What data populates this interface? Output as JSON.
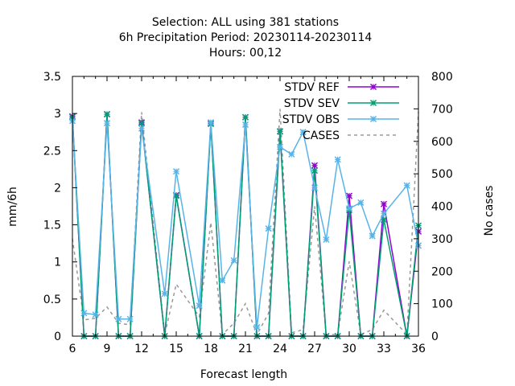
{
  "chart_data": {
    "type": "line",
    "title_lines": [
      "Selection: ALL using   381 stations",
      "6h Precipitation   Period: 20230114-20230114",
      "Hours:  00,12"
    ],
    "xlabel": "Forecast length",
    "ylabel": "mm/6h",
    "y2label": "No cases",
    "xlim": [
      6,
      36
    ],
    "ylim": [
      0,
      3.5
    ],
    "y2lim": [
      0,
      800
    ],
    "xticks": [
      6,
      9,
      12,
      15,
      18,
      21,
      24,
      27,
      30,
      33,
      36
    ],
    "yticks": [
      0,
      0.5,
      1,
      1.5,
      2,
      2.5,
      3,
      3.5
    ],
    "y2ticks": [
      0,
      100,
      200,
      300,
      400,
      500,
      600,
      700,
      800
    ],
    "legend_position": "top-right",
    "x": [
      6,
      7,
      8,
      9,
      10,
      11,
      12,
      14,
      15,
      17,
      18,
      19,
      20,
      21,
      22,
      23,
      24,
      25,
      26,
      27,
      28,
      29,
      30,
      31,
      32,
      33,
      35,
      36
    ],
    "series": [
      {
        "name": "STDV REF",
        "color": "#9400d3",
        "marker": "x",
        "axis": "y",
        "values": [
          2.96,
          0,
          0,
          2.99,
          0,
          0,
          2.88,
          0,
          1.9,
          0,
          2.87,
          0,
          0,
          2.95,
          0,
          0,
          2.76,
          0,
          0,
          2.3,
          0,
          0,
          1.89,
          0,
          0,
          1.78,
          0,
          1.41
        ]
      },
      {
        "name": "STDV SEV",
        "color": "#009e73",
        "marker": "x",
        "axis": "y",
        "values": [
          2.95,
          0,
          0,
          2.99,
          0,
          0,
          2.87,
          0,
          1.89,
          0,
          2.86,
          0,
          0,
          2.95,
          0,
          0,
          2.76,
          0,
          0,
          2.23,
          0,
          0,
          1.7,
          0,
          0,
          1.57,
          0,
          1.49
        ]
      },
      {
        "name": "STDV OBS",
        "color": "#56b4e9",
        "marker": "x",
        "axis": "y",
        "values": [
          2.9,
          0.31,
          0.29,
          2.87,
          0.23,
          0.23,
          2.8,
          0.57,
          2.22,
          0.41,
          2.88,
          0.75,
          1.02,
          2.85,
          0.12,
          1.45,
          2.55,
          2.45,
          2.75,
          2.0,
          1.3,
          2.38,
          1.72,
          1.8,
          1.35,
          1.65,
          2.03,
          1.22
        ]
      },
      {
        "name": "CASES",
        "color": "#999999",
        "dashed": true,
        "axis": "y2",
        "values": [
          300,
          50,
          55,
          90,
          40,
          35,
          690,
          5,
          160,
          60,
          350,
          5,
          40,
          100,
          5,
          70,
          700,
          10,
          20,
          400,
          5,
          5,
          230,
          5,
          20,
          80,
          5,
          690
        ]
      }
    ]
  }
}
